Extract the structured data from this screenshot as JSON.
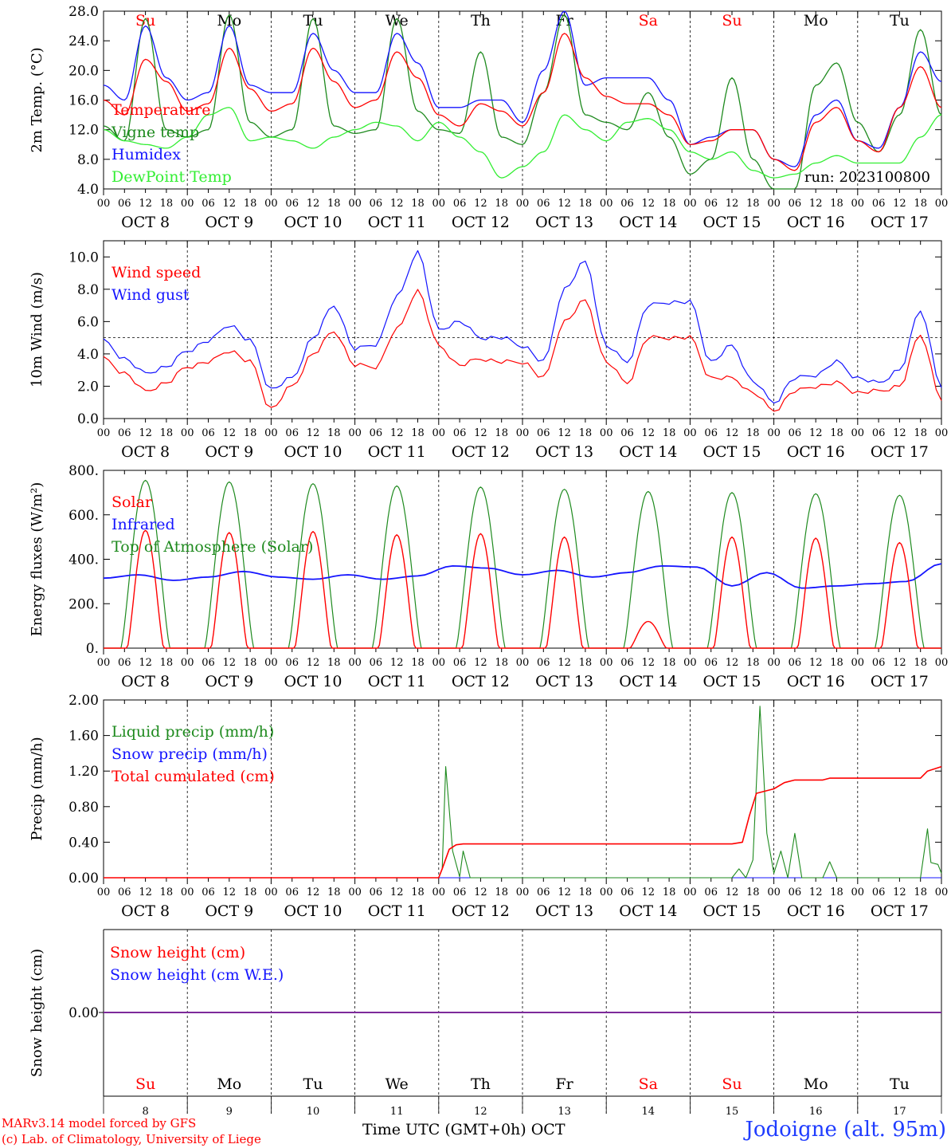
{
  "colors": {
    "red": "#ff0000",
    "dark_green": "#1e8a1e",
    "blue": "#1414ff",
    "light_green": "#33ee33",
    "purple": "#7d2a9a"
  },
  "days": [
    {
      "name": "Su",
      "weekend": true,
      "date": "8"
    },
    {
      "name": "Mo",
      "weekend": false,
      "date": "9"
    },
    {
      "name": "Tu",
      "weekend": false,
      "date": "10"
    },
    {
      "name": "We",
      "weekend": false,
      "date": "11"
    },
    {
      "name": "Th",
      "weekend": false,
      "date": "12"
    },
    {
      "name": "Fr",
      "weekend": false,
      "date": "13"
    },
    {
      "name": "Sa",
      "weekend": true,
      "date": "14"
    },
    {
      "name": "Su",
      "weekend": true,
      "date": "15"
    },
    {
      "name": "Mo",
      "weekend": false,
      "date": "16"
    },
    {
      "name": "Tu",
      "weekend": false,
      "date": "17"
    }
  ],
  "hour_ticks": [
    "00",
    "06",
    "12",
    "18"
  ],
  "date_labels": [
    "OCT  8",
    "OCT  9",
    "OCT 10",
    "OCT 11",
    "OCT 12",
    "OCT 13",
    "OCT 14",
    "OCT 15",
    "OCT 16",
    "OCT 17"
  ],
  "footer": {
    "model": "MARv3.14 model forced by GFS",
    "copyright": "(c) Lab. of Climatology, University of Liege",
    "xlabel": "Time UTC (GMT+0h) OCT",
    "station": "Jodoigne (alt. 95m)"
  },
  "chart_data": [
    {
      "type": "line",
      "ylabel": "2m Temp. (°C)",
      "ylim": [
        4,
        28
      ],
      "yticks": [
        "4.0",
        "8.0",
        "12.0",
        "16.0",
        "20.0",
        "24.0",
        "28.0"
      ],
      "annotation": "run: 2023100800",
      "x_hours": [
        0,
        6,
        12,
        18,
        24,
        30,
        36,
        42,
        48,
        54,
        60,
        66,
        72,
        78,
        84,
        90,
        96,
        102,
        108,
        114,
        120,
        126,
        132,
        138,
        144,
        150,
        156,
        162,
        168,
        174,
        180,
        186,
        192,
        198,
        204,
        210,
        216,
        222,
        228,
        234,
        240
      ],
      "series": [
        {
          "name": "Temperature",
          "color": "red",
          "values": [
            16,
            14,
            21.5,
            18.5,
            14.5,
            15.5,
            23,
            17.5,
            14.5,
            15.5,
            23,
            18.5,
            15,
            16,
            22.5,
            19,
            14,
            12.5,
            15.5,
            14.5,
            12.5,
            17,
            25,
            19,
            16.5,
            15.5,
            15.5,
            14,
            10,
            10.5,
            12,
            12,
            8,
            6.5,
            13,
            15,
            10.5,
            9,
            15,
            20.5,
            15
          ]
        },
        {
          "name": "Vigne temp",
          "color": "dark_green",
          "values": [
            12.5,
            10.5,
            27,
            12,
            11,
            12,
            27.5,
            13,
            11,
            12,
            27,
            12.5,
            11.5,
            12,
            27,
            14.5,
            12,
            11.5,
            22.5,
            11,
            10,
            17,
            27.5,
            14,
            13,
            12,
            17,
            11,
            6,
            8,
            19,
            8,
            4,
            4,
            18,
            21,
            13,
            9,
            14,
            25.5,
            14
          ]
        },
        {
          "name": "Humidex",
          "color": "blue",
          "values": [
            18,
            16,
            26,
            19,
            16,
            17,
            26,
            18,
            17,
            17,
            25,
            20,
            17,
            17,
            25,
            21,
            15,
            15,
            16,
            16,
            13,
            20,
            28,
            18,
            19,
            19,
            19,
            16,
            10,
            11,
            12,
            12,
            8,
            7,
            14,
            16,
            10.5,
            9.5,
            15,
            22.5,
            18.5
          ]
        },
        {
          "name": "DewPoint Temp",
          "color": "light_green",
          "values": [
            12,
            10.5,
            10,
            9.5,
            11,
            14,
            15,
            10.5,
            11,
            10.5,
            9.5,
            11,
            12,
            13,
            12.5,
            10.5,
            13,
            11,
            9,
            5.5,
            7,
            9,
            14,
            12,
            10.5,
            13,
            13.5,
            12,
            9,
            8,
            9,
            6.5,
            5.5,
            6,
            7.5,
            8.5,
            7.5,
            7.5,
            7.5,
            11,
            14
          ]
        }
      ]
    },
    {
      "type": "line",
      "ylabel": "10m Wind (m/s)",
      "ylim": [
        0,
        11
      ],
      "yticks": [
        "0.0",
        "2.0",
        "4.0",
        "6.0",
        "8.0",
        "10.0"
      ],
      "reference_line": 5,
      "x_hours": [
        0,
        6,
        12,
        18,
        24,
        30,
        36,
        42,
        48,
        54,
        60,
        66,
        72,
        78,
        84,
        90,
        96,
        102,
        108,
        114,
        120,
        126,
        132,
        138,
        144,
        150,
        156,
        162,
        168,
        174,
        180,
        186,
        192,
        198,
        204,
        210,
        216,
        222,
        228,
        234,
        240
      ],
      "series": [
        {
          "name": "Wind speed",
          "color": "red",
          "values": [
            3.7,
            2.8,
            1.7,
            2.2,
            3.2,
            3.5,
            4.2,
            3.5,
            0.6,
            2.0,
            4.0,
            5.4,
            3.3,
            3.2,
            5.5,
            7.9,
            4.5,
            3.3,
            3.7,
            3.5,
            3.5,
            2.5,
            6.0,
            7.3,
            3.5,
            2.2,
            5.0,
            5.0,
            5.0,
            2.5,
            2.5,
            1.6,
            0.5,
            1.7,
            2.0,
            2.2,
            1.6,
            1.7,
            2.0,
            5.2,
            1.2
          ]
        },
        {
          "name": "Wind gust",
          "color": "blue",
          "values": [
            4.8,
            3.7,
            2.8,
            3.2,
            4.2,
            4.8,
            5.8,
            4.8,
            1.8,
            2.5,
            5.0,
            7.0,
            4.3,
            4.6,
            7.5,
            10.3,
            5.5,
            6.0,
            5.0,
            5.0,
            4.5,
            3.5,
            8.0,
            9.7,
            4.5,
            3.5,
            7.0,
            7.2,
            7.2,
            3.5,
            4.5,
            2.3,
            1.0,
            2.5,
            2.7,
            3.5,
            2.5,
            2.2,
            3.0,
            6.7,
            2.0
          ]
        }
      ]
    },
    {
      "type": "line",
      "ylabel": "Energy fluxes (W/m²)",
      "ylim": [
        0,
        800
      ],
      "yticks": [
        "0.",
        "200.",
        "400.",
        "600.",
        "800."
      ],
      "series": [
        {
          "name": "Solar",
          "color": "red",
          "daily_peak": [
            530,
            520,
            525,
            510,
            515,
            500,
            120,
            500,
            495,
            475
          ]
        },
        {
          "name": "Infrared",
          "color": "blue",
          "values": [
            315,
            330,
            305,
            320,
            345,
            320,
            310,
            330,
            310,
            325,
            370,
            360,
            330,
            350,
            320,
            340,
            370,
            365,
            280,
            340,
            270,
            280,
            290,
            300,
            380
          ]
        },
        {
          "name": "Top of Atmosphere (Solar)",
          "color": "dark_green",
          "daily_peak": [
            755,
            748,
            740,
            730,
            725,
            715,
            705,
            700,
            695,
            688
          ]
        }
      ]
    },
    {
      "type": "line",
      "ylabel": "Precip (mm/h)",
      "ylim": [
        0,
        2
      ],
      "yticks": [
        "0.00",
        "0.40",
        "0.80",
        "1.20",
        "1.60",
        "2.00"
      ],
      "series": [
        {
          "name": "Liquid precip (mm/h)",
          "color": "dark_green",
          "points": [
            [
              0,
              0
            ],
            [
              96,
              0
            ],
            [
              97,
              0.1
            ],
            [
              98,
              1.25
            ],
            [
              100,
              0.3
            ],
            [
              102,
              0.01
            ],
            [
              103,
              0.3
            ],
            [
              105,
              0
            ],
            [
              180,
              0
            ],
            [
              182,
              0.1
            ],
            [
              184,
              0
            ],
            [
              186,
              0.2
            ],
            [
              188,
              1.93
            ],
            [
              190,
              0.5
            ],
            [
              192,
              0.05
            ],
            [
              194,
              0.3
            ],
            [
              196,
              0
            ],
            [
              198,
              0.5
            ],
            [
              200,
              0
            ],
            [
              206,
              0
            ],
            [
              208,
              0.18
            ],
            [
              210,
              0
            ],
            [
              234,
              0
            ],
            [
              236,
              0.55
            ],
            [
              237,
              0.17
            ],
            [
              239,
              0.15
            ],
            [
              240,
              0.05
            ]
          ]
        },
        {
          "name": "Snow precip (mm/h)",
          "color": "blue",
          "points": [
            [
              0,
              0
            ],
            [
              240,
              0
            ]
          ]
        },
        {
          "name": "Total cumulated (cm)",
          "color": "red",
          "points": [
            [
              0,
              0
            ],
            [
              96,
              0
            ],
            [
              97,
              0.1
            ],
            [
              99,
              0.32
            ],
            [
              101,
              0.37
            ],
            [
              103,
              0.38
            ],
            [
              180,
              0.38
            ],
            [
              183,
              0.4
            ],
            [
              185,
              0.7
            ],
            [
              187,
              0.95
            ],
            [
              192,
              1.0
            ],
            [
              195,
              1.07
            ],
            [
              198,
              1.1
            ],
            [
              206,
              1.1
            ],
            [
              208,
              1.12
            ],
            [
              234,
              1.12
            ],
            [
              236,
              1.2
            ],
            [
              240,
              1.25
            ]
          ]
        }
      ]
    },
    {
      "type": "line",
      "ylabel": "Snow height (cm)",
      "yticks": [
        "0.00"
      ],
      "series": [
        {
          "name": "Snow height (cm)",
          "color": "red",
          "values": [
            0,
            0
          ]
        },
        {
          "name": "Snow height (cm W.E.)",
          "color": "blue",
          "values": [
            0,
            0
          ]
        }
      ]
    }
  ]
}
